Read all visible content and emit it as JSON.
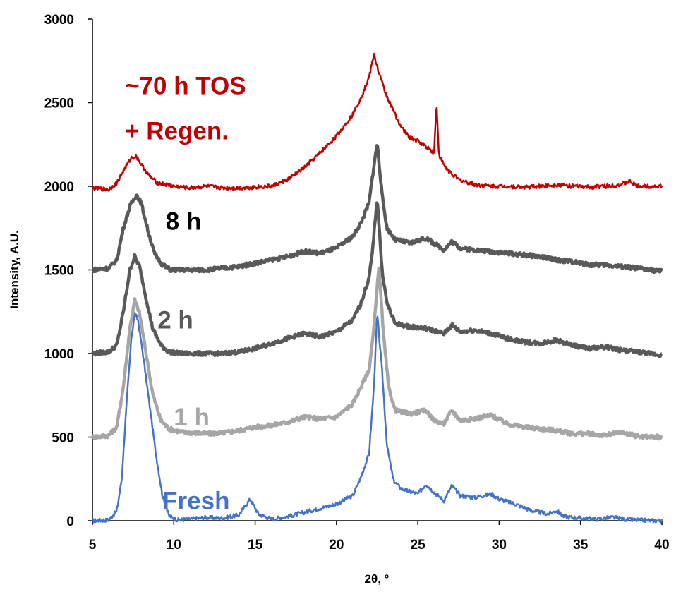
{
  "chart_data": {
    "type": "line",
    "title": "",
    "xlabel": "2θ, °",
    "ylabel": "Intensity, A.U.",
    "xlim": [
      5,
      40
    ],
    "ylim": [
      0,
      3000
    ],
    "x_ticks": [
      "5",
      "10",
      "15",
      "20",
      "25",
      "30",
      "35",
      "40"
    ],
    "y_ticks": [
      "0",
      "500",
      "1000",
      "1500",
      "2000",
      "2500",
      "3000"
    ],
    "grid": false,
    "legend": "none",
    "series": [
      {
        "name": "Fresh",
        "color": "#4472C4",
        "points": [
          [
            5,
            0
          ],
          [
            6,
            5
          ],
          [
            6.5,
            60
          ],
          [
            6.8,
            250
          ],
          [
            7.1,
            700
          ],
          [
            7.4,
            1100
          ],
          [
            7.6,
            1240
          ],
          [
            7.8,
            1200
          ],
          [
            8.1,
            1000
          ],
          [
            8.5,
            700
          ],
          [
            8.9,
            400
          ],
          [
            9.3,
            150
          ],
          [
            9.7,
            30
          ],
          [
            10.2,
            5
          ],
          [
            11,
            10
          ],
          [
            12,
            20
          ],
          [
            13,
            15
          ],
          [
            14,
            35
          ],
          [
            14.7,
            130
          ],
          [
            15.2,
            40
          ],
          [
            16,
            10
          ],
          [
            17,
            25
          ],
          [
            18,
            50
          ],
          [
            19,
            75
          ],
          [
            20,
            100
          ],
          [
            21,
            150
          ],
          [
            21.5,
            260
          ],
          [
            22,
            400
          ],
          [
            22.3,
            800
          ],
          [
            22.5,
            1240
          ],
          [
            22.8,
            900
          ],
          [
            23.1,
            450
          ],
          [
            23.5,
            240
          ],
          [
            24,
            190
          ],
          [
            25,
            160
          ],
          [
            25.5,
            220
          ],
          [
            26,
            170
          ],
          [
            26.6,
            120
          ],
          [
            27.1,
            210
          ],
          [
            27.6,
            150
          ],
          [
            28.5,
            140
          ],
          [
            29.5,
            160
          ],
          [
            30,
            130
          ],
          [
            31,
            100
          ],
          [
            32,
            60
          ],
          [
            33,
            40
          ],
          [
            33.5,
            60
          ],
          [
            34,
            25
          ],
          [
            35,
            15
          ],
          [
            36,
            10
          ],
          [
            37,
            20
          ],
          [
            38,
            5
          ],
          [
            40,
            0
          ]
        ]
      },
      {
        "name": "1 h",
        "color": "#A6A6A6",
        "points": [
          [
            5,
            500
          ],
          [
            6,
            510
          ],
          [
            6.5,
            560
          ],
          [
            6.9,
            800
          ],
          [
            7.3,
            1150
          ],
          [
            7.6,
            1320
          ],
          [
            7.9,
            1240
          ],
          [
            8.3,
            1000
          ],
          [
            8.7,
            760
          ],
          [
            9.2,
            600
          ],
          [
            9.7,
            550
          ],
          [
            10.5,
            530
          ],
          [
            12,
            520
          ],
          [
            13,
            525
          ],
          [
            14,
            540
          ],
          [
            15,
            560
          ],
          [
            16,
            570
          ],
          [
            17,
            590
          ],
          [
            18,
            620
          ],
          [
            19,
            610
          ],
          [
            20,
            620
          ],
          [
            21,
            700
          ],
          [
            21.5,
            800
          ],
          [
            22,
            900
          ],
          [
            22.3,
            1150
          ],
          [
            22.6,
            1520
          ],
          [
            22.9,
            1100
          ],
          [
            23.2,
            800
          ],
          [
            23.6,
            660
          ],
          [
            24.5,
            640
          ],
          [
            25.5,
            660
          ],
          [
            26,
            600
          ],
          [
            26.6,
            580
          ],
          [
            27.1,
            660
          ],
          [
            27.6,
            600
          ],
          [
            28.5,
            610
          ],
          [
            29.5,
            630
          ],
          [
            30.5,
            580
          ],
          [
            31.5,
            560
          ],
          [
            32.5,
            550
          ],
          [
            33.5,
            540
          ],
          [
            34.5,
            520
          ],
          [
            35.5,
            520
          ],
          [
            36.5,
            510
          ],
          [
            37.5,
            530
          ],
          [
            38.5,
            505
          ],
          [
            40,
            500
          ]
        ]
      },
      {
        "name": "2 h",
        "color": "#595959",
        "points": [
          [
            5,
            1000
          ],
          [
            6,
            1010
          ],
          [
            6.5,
            1050
          ],
          [
            6.9,
            1250
          ],
          [
            7.3,
            1500
          ],
          [
            7.6,
            1580
          ],
          [
            7.9,
            1520
          ],
          [
            8.3,
            1330
          ],
          [
            8.7,
            1150
          ],
          [
            9.2,
            1050
          ],
          [
            9.7,
            1010
          ],
          [
            10.5,
            1000
          ],
          [
            12,
            1000
          ],
          [
            13,
            1000
          ],
          [
            14,
            1010
          ],
          [
            15,
            1030
          ],
          [
            16,
            1060
          ],
          [
            17,
            1090
          ],
          [
            18,
            1120
          ],
          [
            19,
            1100
          ],
          [
            20,
            1130
          ],
          [
            21,
            1200
          ],
          [
            21.5,
            1300
          ],
          [
            22,
            1450
          ],
          [
            22.2,
            1600
          ],
          [
            22.5,
            1930
          ],
          [
            22.8,
            1500
          ],
          [
            23.1,
            1300
          ],
          [
            23.6,
            1180
          ],
          [
            24.5,
            1160
          ],
          [
            25.5,
            1150
          ],
          [
            26.6,
            1120
          ],
          [
            27.1,
            1170
          ],
          [
            27.6,
            1130
          ],
          [
            28.5,
            1140
          ],
          [
            29.5,
            1120
          ],
          [
            30.5,
            1090
          ],
          [
            31.5,
            1070
          ],
          [
            32.5,
            1060
          ],
          [
            33.5,
            1080
          ],
          [
            34.5,
            1050
          ],
          [
            35.5,
            1030
          ],
          [
            36.5,
            1040
          ],
          [
            37.5,
            1020
          ],
          [
            38.5,
            1010
          ],
          [
            40,
            990
          ]
        ]
      },
      {
        "name": "8 h",
        "color": "#595959",
        "points": [
          [
            5,
            1500
          ],
          [
            6,
            1510
          ],
          [
            6.5,
            1560
          ],
          [
            6.9,
            1750
          ],
          [
            7.3,
            1880
          ],
          [
            7.7,
            1950
          ],
          [
            8,
            1900
          ],
          [
            8.4,
            1740
          ],
          [
            8.8,
            1600
          ],
          [
            9.3,
            1530
          ],
          [
            9.8,
            1500
          ],
          [
            10.5,
            1500
          ],
          [
            12,
            1500
          ],
          [
            13,
            1510
          ],
          [
            14,
            1520
          ],
          [
            15,
            1540
          ],
          [
            16,
            1560
          ],
          [
            17,
            1580
          ],
          [
            18,
            1610
          ],
          [
            19,
            1600
          ],
          [
            20,
            1630
          ],
          [
            21,
            1700
          ],
          [
            21.5,
            1780
          ],
          [
            22,
            1900
          ],
          [
            22.2,
            2050
          ],
          [
            22.5,
            2260
          ],
          [
            22.8,
            1950
          ],
          [
            23.1,
            1750
          ],
          [
            23.6,
            1680
          ],
          [
            24.5,
            1660
          ],
          [
            25.5,
            1690
          ],
          [
            26.6,
            1620
          ],
          [
            27.1,
            1670
          ],
          [
            27.6,
            1630
          ],
          [
            28.5,
            1620
          ],
          [
            29.5,
            1610
          ],
          [
            30.5,
            1600
          ],
          [
            31.5,
            1590
          ],
          [
            32.5,
            1580
          ],
          [
            33.5,
            1560
          ],
          [
            34.5,
            1550
          ],
          [
            35.5,
            1530
          ],
          [
            36.5,
            1530
          ],
          [
            37.5,
            1520
          ],
          [
            38.5,
            1510
          ],
          [
            40,
            1490
          ]
        ]
      },
      {
        "name": "~70 h TOS + Regen.",
        "color": "#C00000",
        "points": [
          [
            5,
            1990
          ],
          [
            6,
            1980
          ],
          [
            6.5,
            2020
          ],
          [
            7,
            2110
          ],
          [
            7.4,
            2170
          ],
          [
            7.7,
            2180
          ],
          [
            8,
            2130
          ],
          [
            8.5,
            2060
          ],
          [
            9,
            2020
          ],
          [
            10,
            2000
          ],
          [
            11,
            1990
          ],
          [
            12,
            2000
          ],
          [
            13,
            1990
          ],
          [
            14,
            1990
          ],
          [
            15,
            1995
          ],
          [
            16,
            2000
          ],
          [
            17,
            2040
          ],
          [
            18,
            2110
          ],
          [
            19,
            2200
          ],
          [
            20,
            2300
          ],
          [
            21,
            2430
          ],
          [
            21.5,
            2530
          ],
          [
            22,
            2650
          ],
          [
            22.3,
            2790
          ],
          [
            22.6,
            2680
          ],
          [
            23,
            2560
          ],
          [
            23.5,
            2450
          ],
          [
            24,
            2350
          ],
          [
            24.5,
            2290
          ],
          [
            25,
            2270
          ],
          [
            25.5,
            2240
          ],
          [
            26,
            2200
          ],
          [
            26.15,
            2500
          ],
          [
            26.3,
            2180
          ],
          [
            26.8,
            2100
          ],
          [
            27.5,
            2040
          ],
          [
            28.5,
            2010
          ],
          [
            29.5,
            2000
          ],
          [
            30.5,
            2000
          ],
          [
            31.5,
            1995
          ],
          [
            32.5,
            2000
          ],
          [
            33.5,
            2010
          ],
          [
            34.5,
            2000
          ],
          [
            35.5,
            1995
          ],
          [
            36.5,
            2000
          ],
          [
            37.5,
            2010
          ],
          [
            38,
            2030
          ],
          [
            38.5,
            2000
          ],
          [
            39.5,
            2000
          ],
          [
            40,
            2000
          ]
        ]
      }
    ],
    "annotations": [
      {
        "text": "~70 h TOS",
        "x": 7.0,
        "y": 2550,
        "color": "#C00000"
      },
      {
        "text": "+ Regen.",
        "x": 7.0,
        "y": 2280,
        "color": "#C00000"
      },
      {
        "text": "8 h",
        "x": 9.5,
        "y": 1740,
        "color": "#000000"
      },
      {
        "text": "2 h",
        "x": 9.0,
        "y": 1150,
        "color": "#595959"
      },
      {
        "text": "1 h",
        "x": 10.0,
        "y": 570,
        "color": "#A6A6A6"
      },
      {
        "text": "Fresh",
        "x": 9.3,
        "y": 70,
        "color": "#4472C4"
      }
    ]
  }
}
